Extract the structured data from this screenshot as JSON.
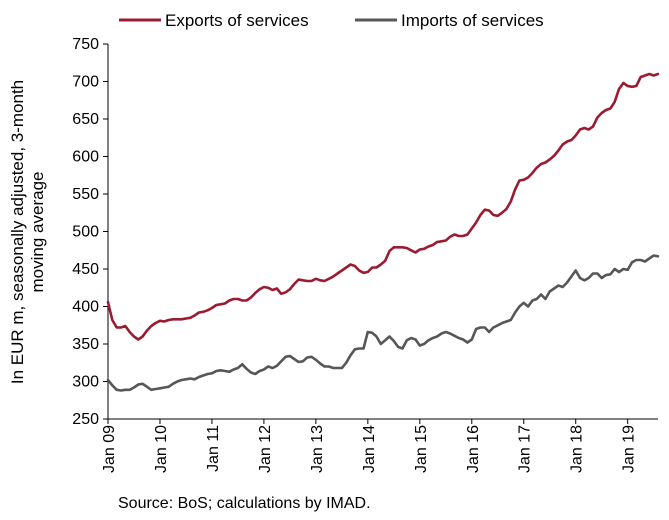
{
  "chart_data": {
    "type": "line",
    "ylabel_lines": [
      "In EUR m, seasonally adjusted, 3-month",
      "moving average"
    ],
    "source": "Source: BoS; calculations by IMAD.",
    "ylim": [
      250,
      750
    ],
    "yticks": [
      250,
      300,
      350,
      400,
      450,
      500,
      550,
      600,
      650,
      700,
      750
    ],
    "x_start": "2009-01",
    "x_end": "2019-08",
    "xticks": [
      {
        "date": "2009-01",
        "label": "Jan 09"
      },
      {
        "date": "2010-01",
        "label": "Jan 10"
      },
      {
        "date": "2011-01",
        "label": "Jan 11"
      },
      {
        "date": "2012-01",
        "label": "Jan 12"
      },
      {
        "date": "2013-01",
        "label": "Jan 13"
      },
      {
        "date": "2014-01",
        "label": "Jan 14"
      },
      {
        "date": "2015-01",
        "label": "Jan 15"
      },
      {
        "date": "2016-01",
        "label": "Jan 16"
      },
      {
        "date": "2017-01",
        "label": "Jan 17"
      },
      {
        "date": "2018-01",
        "label": "Jan 18"
      },
      {
        "date": "2019-01",
        "label": "Jan 19"
      }
    ],
    "grid": false,
    "legend_position": "top",
    "series": [
      {
        "name": "Exports of services",
        "color": "#9b1b30",
        "values": [
          [
            "2009-01",
            406
          ],
          [
            "2009-02",
            382
          ],
          [
            "2009-03",
            372
          ],
          [
            "2009-04",
            372
          ],
          [
            "2009-05",
            374
          ],
          [
            "2009-06",
            366
          ],
          [
            "2009-07",
            360
          ],
          [
            "2009-08",
            356
          ],
          [
            "2009-09",
            360
          ],
          [
            "2009-10",
            368
          ],
          [
            "2009-11",
            374
          ],
          [
            "2009-12",
            378
          ],
          [
            "2010-01",
            381
          ],
          [
            "2010-02",
            380
          ],
          [
            "2010-03",
            382
          ],
          [
            "2010-04",
            383
          ],
          [
            "2010-05",
            383
          ],
          [
            "2010-06",
            383
          ],
          [
            "2010-07",
            384
          ],
          [
            "2010-08",
            385
          ],
          [
            "2010-09",
            388
          ],
          [
            "2010-10",
            392
          ],
          [
            "2010-11",
            393
          ],
          [
            "2010-12",
            395
          ],
          [
            "2011-01",
            398
          ],
          [
            "2011-02",
            402
          ],
          [
            "2011-03",
            403
          ],
          [
            "2011-04",
            404
          ],
          [
            "2011-05",
            408
          ],
          [
            "2011-06",
            410
          ],
          [
            "2011-07",
            410
          ],
          [
            "2011-08",
            408
          ],
          [
            "2011-09",
            408
          ],
          [
            "2011-10",
            412
          ],
          [
            "2011-11",
            418
          ],
          [
            "2011-12",
            423
          ],
          [
            "2012-01",
            426
          ],
          [
            "2012-02",
            425
          ],
          [
            "2012-03",
            422
          ],
          [
            "2012-04",
            424
          ],
          [
            "2012-05",
            417
          ],
          [
            "2012-06",
            419
          ],
          [
            "2012-07",
            423
          ],
          [
            "2012-08",
            430
          ],
          [
            "2012-09",
            436
          ],
          [
            "2012-10",
            435
          ],
          [
            "2012-11",
            434
          ],
          [
            "2012-12",
            434
          ],
          [
            "2013-01",
            437
          ],
          [
            "2013-02",
            435
          ],
          [
            "2013-03",
            434
          ],
          [
            "2013-04",
            437
          ],
          [
            "2013-05",
            440
          ],
          [
            "2013-06",
            444
          ],
          [
            "2013-07",
            448
          ],
          [
            "2013-08",
            452
          ],
          [
            "2013-09",
            456
          ],
          [
            "2013-10",
            454
          ],
          [
            "2013-11",
            448
          ],
          [
            "2013-12",
            445
          ],
          [
            "2014-01",
            446
          ],
          [
            "2014-02",
            452
          ],
          [
            "2014-03",
            452
          ],
          [
            "2014-04",
            456
          ],
          [
            "2014-05",
            461
          ],
          [
            "2014-06",
            474
          ],
          [
            "2014-07",
            479
          ],
          [
            "2014-08",
            479
          ],
          [
            "2014-09",
            479
          ],
          [
            "2014-10",
            478
          ],
          [
            "2014-11",
            475
          ],
          [
            "2014-12",
            472
          ],
          [
            "2015-01",
            476
          ],
          [
            "2015-02",
            477
          ],
          [
            "2015-03",
            480
          ],
          [
            "2015-04",
            482
          ],
          [
            "2015-05",
            486
          ],
          [
            "2015-06",
            487
          ],
          [
            "2015-07",
            488
          ],
          [
            "2015-08",
            493
          ],
          [
            "2015-09",
            496
          ],
          [
            "2015-10",
            494
          ],
          [
            "2015-11",
            494
          ],
          [
            "2015-12",
            496
          ],
          [
            "2016-01",
            504
          ],
          [
            "2016-02",
            512
          ],
          [
            "2016-03",
            522
          ],
          [
            "2016-04",
            529
          ],
          [
            "2016-05",
            528
          ],
          [
            "2016-06",
            522
          ],
          [
            "2016-07",
            521
          ],
          [
            "2016-08",
            525
          ],
          [
            "2016-09",
            530
          ],
          [
            "2016-10",
            540
          ],
          [
            "2016-11",
            556
          ],
          [
            "2016-12",
            568
          ],
          [
            "2017-01",
            569
          ],
          [
            "2017-02",
            572
          ],
          [
            "2017-03",
            578
          ],
          [
            "2017-04",
            585
          ],
          [
            "2017-05",
            590
          ],
          [
            "2017-06",
            592
          ],
          [
            "2017-07",
            596
          ],
          [
            "2017-08",
            601
          ],
          [
            "2017-09",
            608
          ],
          [
            "2017-10",
            616
          ],
          [
            "2017-11",
            620
          ],
          [
            "2017-12",
            622
          ],
          [
            "2018-01",
            628
          ],
          [
            "2018-02",
            636
          ],
          [
            "2018-03",
            638
          ],
          [
            "2018-04",
            636
          ],
          [
            "2018-05",
            640
          ],
          [
            "2018-06",
            652
          ],
          [
            "2018-07",
            658
          ],
          [
            "2018-08",
            662
          ],
          [
            "2018-09",
            664
          ],
          [
            "2018-10",
            673
          ],
          [
            "2018-11",
            690
          ],
          [
            "2018-12",
            698
          ],
          [
            "2019-01",
            694
          ],
          [
            "2019-02",
            693
          ],
          [
            "2019-03",
            694
          ],
          [
            "2019-04",
            706
          ],
          [
            "2019-05",
            708
          ],
          [
            "2019-06",
            710
          ],
          [
            "2019-07",
            708
          ],
          [
            "2019-08",
            710
          ]
        ]
      },
      {
        "name": "Imports of services",
        "color": "#575757",
        "values": [
          [
            "2009-01",
            302
          ],
          [
            "2009-02",
            295
          ],
          [
            "2009-03",
            289
          ],
          [
            "2009-04",
            288
          ],
          [
            "2009-05",
            289
          ],
          [
            "2009-06",
            289
          ],
          [
            "2009-07",
            292
          ],
          [
            "2009-08",
            296
          ],
          [
            "2009-09",
            297
          ],
          [
            "2009-10",
            293
          ],
          [
            "2009-11",
            289
          ],
          [
            "2009-12",
            290
          ],
          [
            "2010-01",
            291
          ],
          [
            "2010-02",
            292
          ],
          [
            "2010-03",
            293
          ],
          [
            "2010-04",
            297
          ],
          [
            "2010-05",
            300
          ],
          [
            "2010-06",
            302
          ],
          [
            "2010-07",
            303
          ],
          [
            "2010-08",
            304
          ],
          [
            "2010-09",
            303
          ],
          [
            "2010-10",
            306
          ],
          [
            "2010-11",
            308
          ],
          [
            "2010-12",
            310
          ],
          [
            "2011-01",
            311
          ],
          [
            "2011-02",
            314
          ],
          [
            "2011-03",
            315
          ],
          [
            "2011-04",
            314
          ],
          [
            "2011-05",
            313
          ],
          [
            "2011-06",
            316
          ],
          [
            "2011-07",
            318
          ],
          [
            "2011-08",
            323
          ],
          [
            "2011-09",
            317
          ],
          [
            "2011-10",
            312
          ],
          [
            "2011-11",
            310
          ],
          [
            "2011-12",
            314
          ],
          [
            "2012-01",
            316
          ],
          [
            "2012-02",
            320
          ],
          [
            "2012-03",
            318
          ],
          [
            "2012-04",
            321
          ],
          [
            "2012-05",
            327
          ],
          [
            "2012-06",
            333
          ],
          [
            "2012-07",
            334
          ],
          [
            "2012-08",
            330
          ],
          [
            "2012-09",
            326
          ],
          [
            "2012-10",
            327
          ],
          [
            "2012-11",
            332
          ],
          [
            "2012-12",
            333
          ],
          [
            "2013-01",
            329
          ],
          [
            "2013-02",
            324
          ],
          [
            "2013-03",
            320
          ],
          [
            "2013-04",
            320
          ],
          [
            "2013-05",
            318
          ],
          [
            "2013-06",
            318
          ],
          [
            "2013-07",
            318
          ],
          [
            "2013-08",
            325
          ],
          [
            "2013-09",
            335
          ],
          [
            "2013-10",
            343
          ],
          [
            "2013-11",
            344
          ],
          [
            "2013-12",
            344
          ],
          [
            "2014-01",
            366
          ],
          [
            "2014-02",
            365
          ],
          [
            "2014-03",
            360
          ],
          [
            "2014-04",
            350
          ],
          [
            "2014-05",
            355
          ],
          [
            "2014-06",
            360
          ],
          [
            "2014-07",
            354
          ],
          [
            "2014-08",
            346
          ],
          [
            "2014-09",
            344
          ],
          [
            "2014-10",
            355
          ],
          [
            "2014-11",
            358
          ],
          [
            "2014-12",
            356
          ],
          [
            "2015-01",
            348
          ],
          [
            "2015-02",
            350
          ],
          [
            "2015-03",
            355
          ],
          [
            "2015-04",
            358
          ],
          [
            "2015-05",
            360
          ],
          [
            "2015-06",
            364
          ],
          [
            "2015-07",
            366
          ],
          [
            "2015-08",
            364
          ],
          [
            "2015-09",
            361
          ],
          [
            "2015-10",
            358
          ],
          [
            "2015-11",
            356
          ],
          [
            "2015-12",
            352
          ],
          [
            "2016-01",
            356
          ],
          [
            "2016-02",
            370
          ],
          [
            "2016-03",
            372
          ],
          [
            "2016-04",
            372
          ],
          [
            "2016-05",
            366
          ],
          [
            "2016-06",
            372
          ],
          [
            "2016-07",
            375
          ],
          [
            "2016-08",
            378
          ],
          [
            "2016-09",
            380
          ],
          [
            "2016-10",
            382
          ],
          [
            "2016-11",
            392
          ],
          [
            "2016-12",
            400
          ],
          [
            "2017-01",
            405
          ],
          [
            "2017-02",
            400
          ],
          [
            "2017-03",
            408
          ],
          [
            "2017-04",
            410
          ],
          [
            "2017-05",
            416
          ],
          [
            "2017-06",
            410
          ],
          [
            "2017-07",
            420
          ],
          [
            "2017-08",
            424
          ],
          [
            "2017-09",
            428
          ],
          [
            "2017-10",
            426
          ],
          [
            "2017-11",
            432
          ],
          [
            "2017-12",
            440
          ],
          [
            "2018-01",
            448
          ],
          [
            "2018-02",
            438
          ],
          [
            "2018-03",
            435
          ],
          [
            "2018-04",
            438
          ],
          [
            "2018-05",
            444
          ],
          [
            "2018-06",
            444
          ],
          [
            "2018-07",
            438
          ],
          [
            "2018-08",
            442
          ],
          [
            "2018-09",
            443
          ],
          [
            "2018-10",
            450
          ],
          [
            "2018-11",
            446
          ],
          [
            "2018-12",
            450
          ],
          [
            "2019-01",
            449
          ],
          [
            "2019-02",
            459
          ],
          [
            "2019-03",
            462
          ],
          [
            "2019-04",
            462
          ],
          [
            "2019-05",
            460
          ],
          [
            "2019-06",
            464
          ],
          [
            "2019-07",
            468
          ],
          [
            "2019-08",
            467
          ]
        ]
      }
    ]
  }
}
